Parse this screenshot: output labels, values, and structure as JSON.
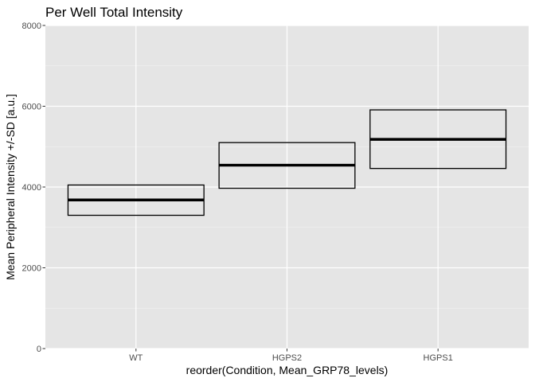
{
  "chart_data": {
    "type": "crossbar",
    "title": "Per Well Total Intensity",
    "xlabel": "reorder(Condition, Mean_GRP78_levels)",
    "ylabel": "Mean Peripheral Intensity +/-SD [a.u.]",
    "categories": [
      "WT",
      "HGPS2",
      "HGPS1"
    ],
    "series": [
      {
        "values": [
          3680,
          4540,
          5180
        ],
        "lower": [
          3300,
          3970,
          4460
        ],
        "upper": [
          4050,
          5100,
          5910
        ]
      }
    ],
    "ylim": [
      0,
      8000
    ],
    "yticks": [
      0,
      2000,
      4000,
      6000,
      8000
    ],
    "grid": true,
    "colors": {
      "panel": "#E5E5E5",
      "grid_major": "#FFFFFF",
      "grid_minor": "#F2F2F2",
      "bar": "#000000"
    }
  }
}
